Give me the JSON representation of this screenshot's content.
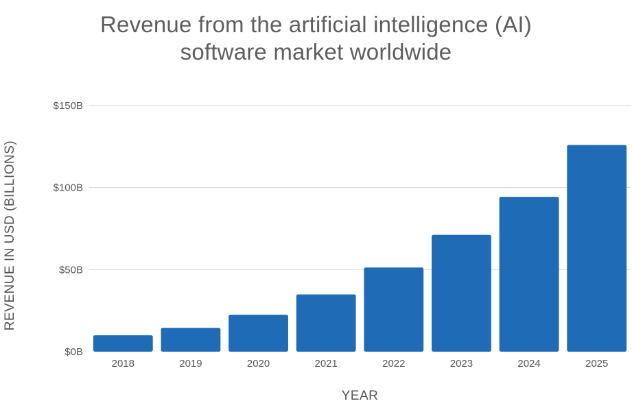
{
  "chart_data": {
    "type": "bar",
    "title_lines": [
      "Revenue from the artificial intelligence (AI)",
      "software market worldwide"
    ],
    "xlabel": "YEAR",
    "ylabel": "REVENUE IN USD (BILLIONS)",
    "categories": [
      "2018",
      "2019",
      "2020",
      "2021",
      "2022",
      "2023",
      "2024",
      "2025"
    ],
    "values": [
      10,
      14.5,
      22.5,
      34.9,
      51.3,
      71.2,
      94.4,
      126
    ],
    "ylim": [
      0,
      150
    ],
    "y_ticks": [
      {
        "value": 0,
        "label": "$0B"
      },
      {
        "value": 50,
        "label": "$50B"
      },
      {
        "value": 100,
        "label": "$100B"
      },
      {
        "value": 150,
        "label": "$150B"
      }
    ],
    "grid": true,
    "bar_color": "#1f6bb5",
    "grid_color": "#d6d6d6"
  }
}
